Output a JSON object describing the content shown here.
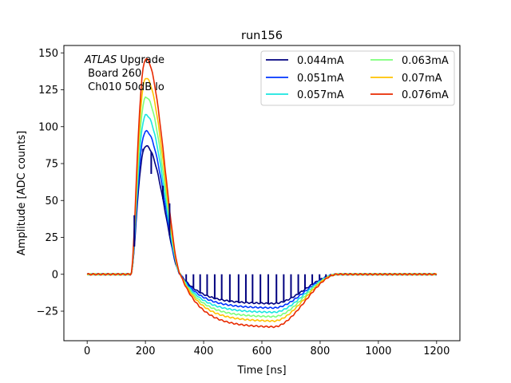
{
  "chart_data": {
    "type": "line",
    "title": "run156",
    "xlabel": "Time [ns]",
    "ylabel": "Amplitude [ADC counts]",
    "xlim": [
      -80,
      1280
    ],
    "ylim": [
      -45,
      155
    ],
    "xticks": [
      0,
      200,
      400,
      600,
      800,
      1000,
      1200
    ],
    "yticks": [
      -25,
      0,
      25,
      50,
      75,
      100,
      125,
      150
    ],
    "legend_position": "top-right",
    "legend_columns": 2,
    "annotation": {
      "line1_italic": "ATLAS",
      "line1_rest": " Upgrade",
      "line2": " Board 260",
      "line3": " Ch010 50dB lo"
    },
    "series": [
      {
        "name": "0.044mA",
        "color": "#00007f",
        "peak": 87,
        "undershoot": -20
      },
      {
        "name": "0.051mA",
        "color": "#0034ff",
        "peak": 97,
        "undershoot": -23
      },
      {
        "name": "0.057mA",
        "color": "#18e6e0",
        "peak": 108,
        "undershoot": -26
      },
      {
        "name": "0.063mA",
        "color": "#7cff79",
        "peak": 120,
        "undershoot": -29
      },
      {
        "name": "0.07mA",
        "color": "#ffc300",
        "peak": 133,
        "undershoot": -32
      },
      {
        "name": "0.076mA",
        "color": "#e82a00",
        "peak": 146,
        "undershoot": -36
      }
    ],
    "sample_spikes": {
      "series": "0.044mA",
      "x": [
        162,
        192,
        220,
        260,
        283,
        340,
        365,
        388,
        412,
        438,
        462,
        490,
        520,
        545,
        568,
        595,
        622,
        650,
        675,
        700,
        725,
        748,
        773,
        798,
        820
      ],
      "y": [
        40,
        85,
        68,
        60,
        48,
        0,
        0,
        0,
        0,
        0,
        0,
        0,
        0,
        0,
        0,
        0,
        0,
        0,
        0,
        0,
        0,
        0,
        0,
        0,
        0
      ]
    }
  }
}
